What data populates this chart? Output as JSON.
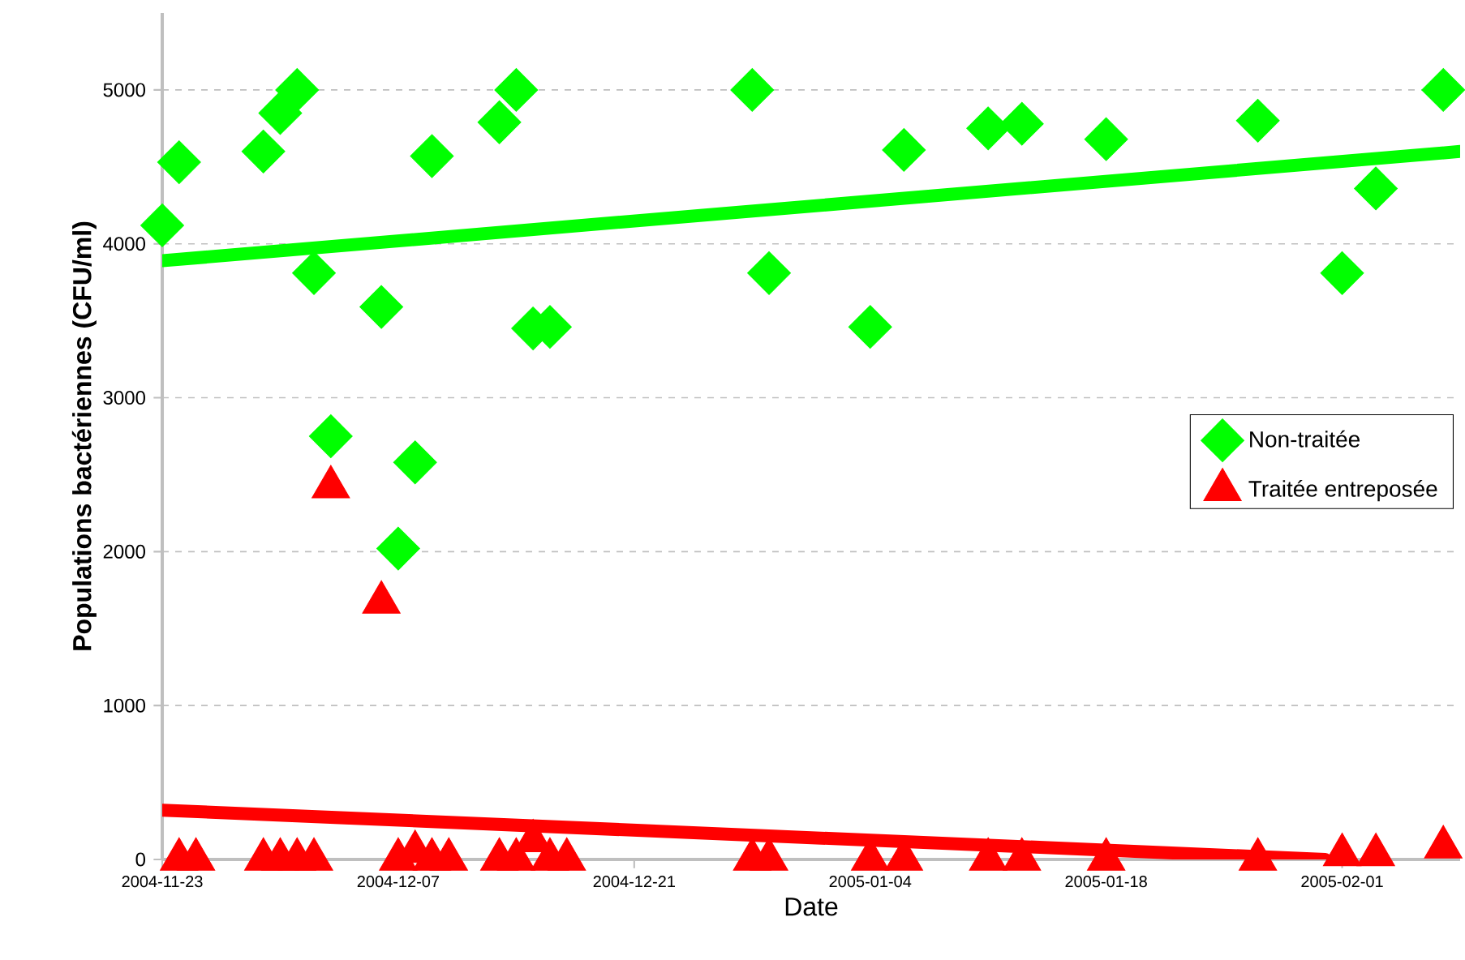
{
  "chart_data": {
    "type": "scatter",
    "xlabel": "Date",
    "ylabel": "Populations bactériennes (CFU/ml)",
    "xlim": [
      "2004-11-23",
      "2005-02-08"
    ],
    "ylim": [
      0,
      5500
    ],
    "xticks": [
      "2004-11-23",
      "2004-12-07",
      "2004-12-21",
      "2005-01-04",
      "2005-01-18",
      "2005-02-01"
    ],
    "yticks": [
      0,
      1000,
      2000,
      3000,
      4000,
      5000
    ],
    "grid": "y",
    "legend": "right",
    "series": [
      {
        "name": "Non-traitée",
        "marker": "diamond",
        "color": "#00ff00",
        "x": [
          "2004-11-23",
          "2004-11-24",
          "2004-11-29",
          "2004-11-30",
          "2004-12-01",
          "2004-12-02",
          "2004-12-03",
          "2004-12-06",
          "2004-12-07",
          "2004-12-08",
          "2004-12-09",
          "2004-12-13",
          "2004-12-14",
          "2004-12-15",
          "2004-12-16",
          "2004-12-28",
          "2004-12-29",
          "2005-01-04",
          "2005-01-06",
          "2005-01-11",
          "2005-01-13",
          "2005-01-18",
          "2005-01-27",
          "2005-02-01",
          "2005-02-03",
          "2005-02-07"
        ],
        "values": [
          4120,
          4530,
          4600,
          4850,
          5000,
          3810,
          2750,
          3590,
          2020,
          2580,
          4570,
          4790,
          5000,
          3450,
          3460,
          5000,
          3810,
          3460,
          4610,
          4750,
          4780,
          4680,
          4800,
          3810,
          4360,
          5000
        ]
      },
      {
        "name": "Traitée entreposée",
        "marker": "triangle",
        "color": "#ff0000",
        "x": [
          "2004-11-24",
          "2004-11-25",
          "2004-11-29",
          "2004-11-30",
          "2004-12-01",
          "2004-12-02",
          "2004-12-03",
          "2004-12-06",
          "2004-12-07",
          "2004-12-08",
          "2004-12-09",
          "2004-12-10",
          "2004-12-13",
          "2004-12-14",
          "2004-12-15",
          "2004-12-16",
          "2004-12-17",
          "2004-12-28",
          "2004-12-29",
          "2005-01-04",
          "2005-01-06",
          "2005-01-11",
          "2005-01-13",
          "2005-01-18",
          "2005-01-27",
          "2005-02-01",
          "2005-02-03",
          "2005-02-07"
        ],
        "values": [
          0,
          0,
          0,
          0,
          0,
          0,
          2420,
          1670,
          0,
          50,
          0,
          0,
          0,
          0,
          120,
          0,
          0,
          0,
          0,
          0,
          0,
          0,
          0,
          0,
          0,
          30,
          30,
          80
        ]
      },
      {
        "type": "line",
        "marker": "none",
        "color": "#00ff00",
        "x": [
          "2004-11-23",
          "2005-02-08"
        ],
        "values": [
          3890,
          4600
        ]
      },
      {
        "type": "line",
        "marker": "none",
        "color": "#ff0000",
        "x": [
          "2004-11-23",
          "2005-01-31"
        ],
        "values": [
          320,
          0
        ]
      }
    ]
  }
}
